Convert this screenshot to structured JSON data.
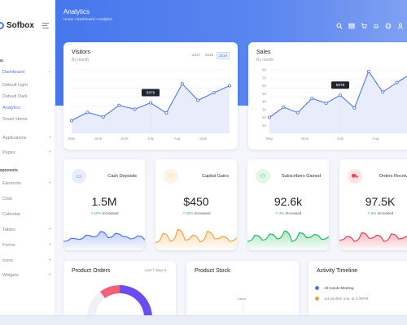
{
  "sidebar": {
    "logo": "Sofbox",
    "section_menu": "nu",
    "section_components": "mponents",
    "items": [
      {
        "label": "Dashboard",
        "active": true
      },
      {
        "label": "Applications"
      },
      {
        "label": "Pages"
      },
      {
        "label": "Elements"
      },
      {
        "label": "Chat"
      },
      {
        "label": "Calendar"
      },
      {
        "label": "Tables"
      },
      {
        "label": "Forms"
      },
      {
        "label": "Icons"
      },
      {
        "label": "Widgets"
      }
    ],
    "dashboard_sub": [
      "Default Light",
      "Default Dark",
      "Analytics",
      "Smart Home"
    ],
    "active_sub": "Analytics"
  },
  "header": {
    "title": "Analytics",
    "breadcrumb": "Home • Dashboard • Analytics",
    "icons": [
      "search-icon",
      "mail-icon",
      "cart-icon",
      "bell-icon",
      "globe-icon",
      "user-icon"
    ]
  },
  "visitors": {
    "title": "Visitors",
    "subtitle": "By month",
    "years": [
      "2017",
      "2018",
      "2019"
    ],
    "active_year": "2019"
  },
  "sales": {
    "title": "Sales",
    "subtitle": "By month"
  },
  "stats": [
    {
      "label": "Cash Deposits",
      "value": "1.5M",
      "delta": "10%",
      "delta_text": "Increased",
      "color": "#4f77ee",
      "icon": "card-icon"
    },
    {
      "label": "Capital Gains",
      "value": "$450",
      "delta": "20%",
      "delta_text": "Increased",
      "color": "#f5a23b",
      "icon": "heart-icon"
    },
    {
      "label": "Subscribers Gained",
      "value": "92.6k",
      "delta": "4%",
      "delta_text": "Increased",
      "color": "#22b85d",
      "icon": "users-icon"
    },
    {
      "label": "Orders Received",
      "value": "97.5K",
      "delta": "5%",
      "delta_text": "Increased",
      "color": "#ec3b55",
      "icon": "cart-icon"
    }
  ],
  "orders": {
    "title": "Product Orders",
    "period": "Last 7 days ▾"
  },
  "stock": {
    "title": "Product Stock",
    "caption": "Cases"
  },
  "activity": {
    "title": "Activity Timeline",
    "rows": [
      {
        "text": "All Hands Meeting",
        "color": "#4f77ee"
      },
      {
        "text": "1st another one, at 4:30PM",
        "color": "#f5a23b"
      }
    ]
  },
  "chart_data": [
    {
      "type": "area",
      "title": "Visitors",
      "categories": [
        "May",
        "June",
        "June",
        "July",
        "Aug",
        "Sept",
        ""
      ],
      "x": [
        1,
        2,
        3,
        4,
        5,
        6,
        7,
        8,
        9,
        10,
        11
      ],
      "values": [
        20,
        33,
        26,
        44,
        38,
        48,
        32,
        78,
        52,
        64,
        75
      ],
      "ylim": [
        0,
        100
      ],
      "annotation": {
        "x": 6,
        "label": "5878"
      },
      "grid": true
    },
    {
      "type": "area",
      "title": "Sales",
      "categories": [
        "May",
        "June",
        "July",
        "Aug",
        "Sept"
      ],
      "x": [
        1,
        2,
        3,
        4,
        5,
        6,
        7,
        8,
        9,
        10,
        11
      ],
      "values": [
        20,
        33,
        26,
        44,
        38,
        48,
        32,
        78,
        52,
        64,
        75
      ],
      "yticks": [
        10,
        20,
        30,
        40,
        50,
        60,
        70,
        80
      ],
      "ylim": [
        0,
        80
      ],
      "annotation": {
        "x": 6,
        "label": "5878"
      },
      "grid": true
    }
  ]
}
